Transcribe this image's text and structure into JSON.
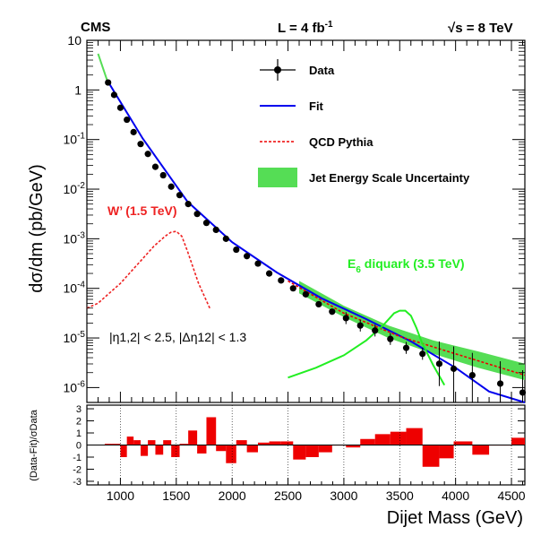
{
  "header": {
    "experiment": "CMS",
    "luminosity": "L = 4 fb",
    "luminosity_exp": "-1",
    "energy_sqrt": "√s",
    "energy_value": " = 8 TeV"
  },
  "legend": {
    "data": "Data",
    "fit": "Fit",
    "qcd": "QCD Pythia",
    "jes": "Jet Energy Scale Uncertainty"
  },
  "annotations": {
    "wprime": "W’ (1.5 TeV)",
    "diquark_prefix": "E",
    "diquark_sub": "6",
    "diquark_suffix": " diquark (3.5 TeV)",
    "cuts": "|η1,2| < 2.5, |Δη12| < 1.3"
  },
  "colors": {
    "data": "#000000",
    "fit": "#0000ee",
    "qcd": "#ee0000",
    "jes": "#55dd55",
    "wprime": "#ee2222",
    "diquark": "#22ee22",
    "residual": "#ee0000"
  },
  "chart_data": [
    {
      "type": "scatter",
      "title": "",
      "xlabel": "Dijet Mass (GeV)",
      "ylabel": "dσ/dm (pb/GeV)",
      "xlim": [
        700,
        4620
      ],
      "ylim_log": [
        -6.3,
        1
      ],
      "xticks": [
        1000,
        1500,
        2000,
        2500,
        3000,
        3500,
        4000,
        4500
      ],
      "yticks": [
        "10^-6",
        "10^-5",
        "10^-4",
        "10^-3",
        "10^-2",
        "10^-1",
        "1",
        "10"
      ],
      "data_points": {
        "name": "Data",
        "x": [
          890,
          944,
          1000,
          1058,
          1118,
          1181,
          1246,
          1313,
          1383,
          1455,
          1530,
          1607,
          1687,
          1770,
          1856,
          1945,
          2037,
          2132,
          2231,
          2332,
          2438,
          2546,
          2659,
          2775,
          2895,
          3019,
          3147,
          3279,
          3416,
          3558,
          3704,
          3854,
          3983,
          4150,
          4400,
          4600
        ],
        "y_log10": [
          0.15,
          -0.1,
          -0.36,
          -0.6,
          -0.85,
          -1.09,
          -1.29,
          -1.55,
          -1.72,
          -1.95,
          -2.12,
          -2.3,
          -2.5,
          -2.68,
          -2.82,
          -3.0,
          -3.22,
          -3.35,
          -3.5,
          -3.7,
          -3.84,
          -4.0,
          -4.12,
          -4.32,
          -4.47,
          -4.6,
          -4.75,
          -4.85,
          -5.02,
          -5.2,
          -5.32,
          -5.52,
          -5.62,
          -5.75,
          -5.92,
          -6.1
        ]
      },
      "fit": {
        "name": "Fit",
        "x": [
          880,
          1200,
          1600,
          2000,
          2400,
          2800,
          3200,
          3600,
          4000,
          4300,
          4620
        ],
        "y_log10": [
          0.2,
          -0.98,
          -2.25,
          -3.07,
          -3.68,
          -4.2,
          -4.62,
          -5.07,
          -5.6,
          -6.08,
          -6.55
        ]
      },
      "qcd": {
        "name": "QCD Pythia",
        "x": [
          2500,
          3000,
          3500,
          4000,
          4620
        ],
        "y_log10": [
          -3.85,
          -4.5,
          -4.97,
          -5.32,
          -5.75
        ]
      },
      "jes_band": {
        "name": "Jet Energy Scale Uncertainty",
        "x": [
          2600,
          3000,
          3400,
          3800,
          4200,
          4620
        ],
        "upper_log10": [
          -3.85,
          -4.35,
          -4.75,
          -5.05,
          -5.27,
          -5.52
        ],
        "lower_log10": [
          -4.1,
          -4.58,
          -5.0,
          -5.32,
          -5.6,
          -5.85
        ]
      },
      "wprime": {
        "name": "W’ (1.5 TeV)",
        "x": [
          700,
          800,
          900,
          1000,
          1100,
          1200,
          1300,
          1400,
          1450,
          1500,
          1550,
          1600,
          1700,
          1800
        ],
        "y_log10": [
          -4.4,
          -4.3,
          -4.1,
          -3.9,
          -3.65,
          -3.4,
          -3.15,
          -2.95,
          -2.87,
          -2.85,
          -2.95,
          -3.25,
          -3.9,
          -4.4
        ]
      },
      "diquark": {
        "name": "E6 diquark (3.5 TeV)",
        "x": [
          2500,
          2750,
          3000,
          3200,
          3350,
          3450,
          3500,
          3550,
          3600,
          3650,
          3700,
          3800,
          3900
        ],
        "y_log10": [
          -5.8,
          -5.6,
          -5.35,
          -5.05,
          -4.75,
          -4.5,
          -4.45,
          -4.45,
          -4.55,
          -4.8,
          -5.1,
          -5.55,
          -5.95
        ]
      },
      "extra_green": {
        "name": "Fit (low-mass extension)",
        "x": [
          800,
          880
        ],
        "y_log10": [
          0.73,
          0.2
        ]
      }
    },
    {
      "type": "bar",
      "xlabel": "Dijet Mass (GeV)",
      "ylabel": "(Data-Fit)/σData",
      "ylim": [
        -3.3,
        3.3
      ],
      "yticks": [
        -3,
        -2,
        -1,
        0,
        1,
        2,
        3
      ],
      "bins": [
        [
          860,
          920,
          0.1
        ],
        [
          920,
          1000,
          0.1
        ],
        [
          1000,
          1058,
          -1.0
        ],
        [
          1058,
          1118,
          0.7
        ],
        [
          1118,
          1181,
          0.4
        ],
        [
          1181,
          1246,
          -0.9
        ],
        [
          1246,
          1313,
          0.4
        ],
        [
          1313,
          1383,
          -0.8
        ],
        [
          1383,
          1455,
          0.4
        ],
        [
          1455,
          1530,
          -1.0
        ],
        [
          1530,
          1607,
          0.1
        ],
        [
          1607,
          1687,
          1.2
        ],
        [
          1687,
          1770,
          -0.7
        ],
        [
          1770,
          1856,
          2.3
        ],
        [
          1856,
          1945,
          -0.5
        ],
        [
          1945,
          2037,
          -1.5
        ],
        [
          2037,
          2132,
          0.4
        ],
        [
          2132,
          2231,
          -0.6
        ],
        [
          2231,
          2332,
          0.2
        ],
        [
          2332,
          2438,
          0.3
        ],
        [
          2438,
          2546,
          0.3
        ],
        [
          2546,
          2659,
          -1.2
        ],
        [
          2659,
          2775,
          -1.0
        ],
        [
          2775,
          2895,
          -0.6
        ],
        [
          2895,
          3019,
          0.0
        ],
        [
          3019,
          3147,
          -0.2
        ],
        [
          3147,
          3279,
          0.5
        ],
        [
          3279,
          3416,
          0.9
        ],
        [
          3416,
          3558,
          1.1
        ],
        [
          3558,
          3704,
          1.4
        ],
        [
          3704,
          3854,
          -1.8
        ],
        [
          3854,
          3983,
          -1.1
        ],
        [
          3983,
          4150,
          0.3
        ],
        [
          4150,
          4300,
          -0.8
        ],
        [
          4300,
          4500,
          0.0
        ],
        [
          4500,
          4620,
          0.6
        ]
      ]
    }
  ]
}
